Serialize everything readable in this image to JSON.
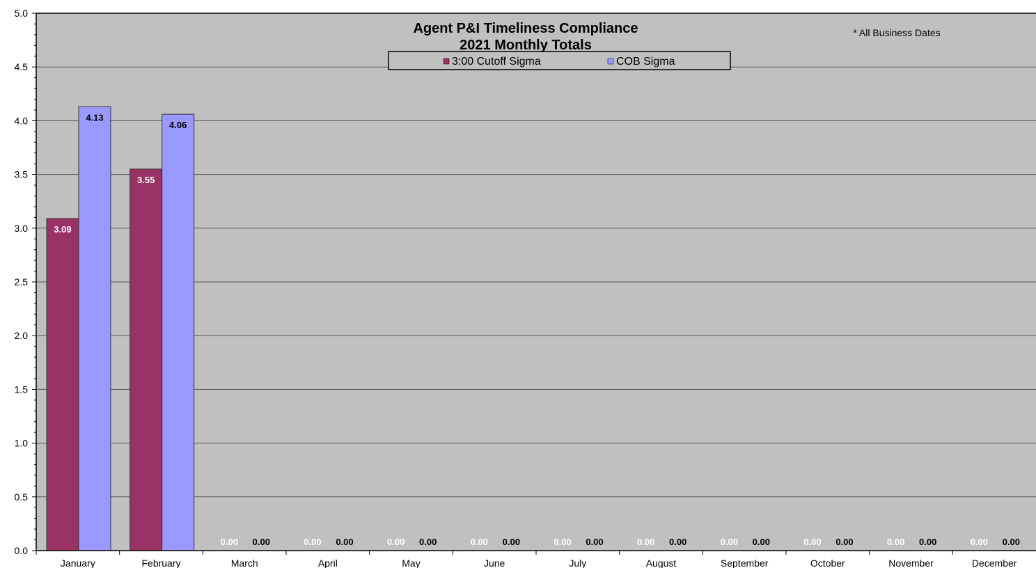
{
  "chart_data": {
    "type": "bar",
    "title": "Agent P&I Timeliness Compliance",
    "subtitle": "2021 Monthly Totals",
    "note": "* All Business Dates",
    "xlabel": "",
    "ylabel": "",
    "ylim": [
      0,
      5
    ],
    "y_ticks": [
      "0.0",
      "0.5",
      "1.0",
      "1.5",
      "2.0",
      "2.5",
      "3.0",
      "3.5",
      "4.0",
      "4.5",
      "5.0"
    ],
    "grid": true,
    "legend_position": "top-center",
    "categories": [
      "January",
      "February",
      "March",
      "April",
      "May",
      "June",
      "July",
      "August",
      "September",
      "October",
      "November",
      "December"
    ],
    "series": [
      {
        "name": "3:00 Cutoff Sigma",
        "color": "#993366",
        "values": [
          3.09,
          3.55,
          0,
          0,
          0,
          0,
          0,
          0,
          0,
          0,
          0,
          0
        ],
        "labels": [
          "3.09",
          "3.55",
          "0.00",
          "0.00",
          "0.00",
          "0.00",
          "0.00",
          "0.00",
          "0.00",
          "0.00",
          "0.00",
          "0.00"
        ]
      },
      {
        "name": "COB Sigma",
        "color": "#9999FF",
        "values": [
          4.13,
          4.06,
          0,
          0,
          0,
          0,
          0,
          0,
          0,
          0,
          0,
          0
        ],
        "labels": [
          "4.13",
          "4.06",
          "0.00",
          "0.00",
          "0.00",
          "0.00",
          "0.00",
          "0.00",
          "0.00",
          "0.00",
          "0.00",
          "0.00"
        ]
      }
    ],
    "plot_background": "#C0C0C0"
  }
}
